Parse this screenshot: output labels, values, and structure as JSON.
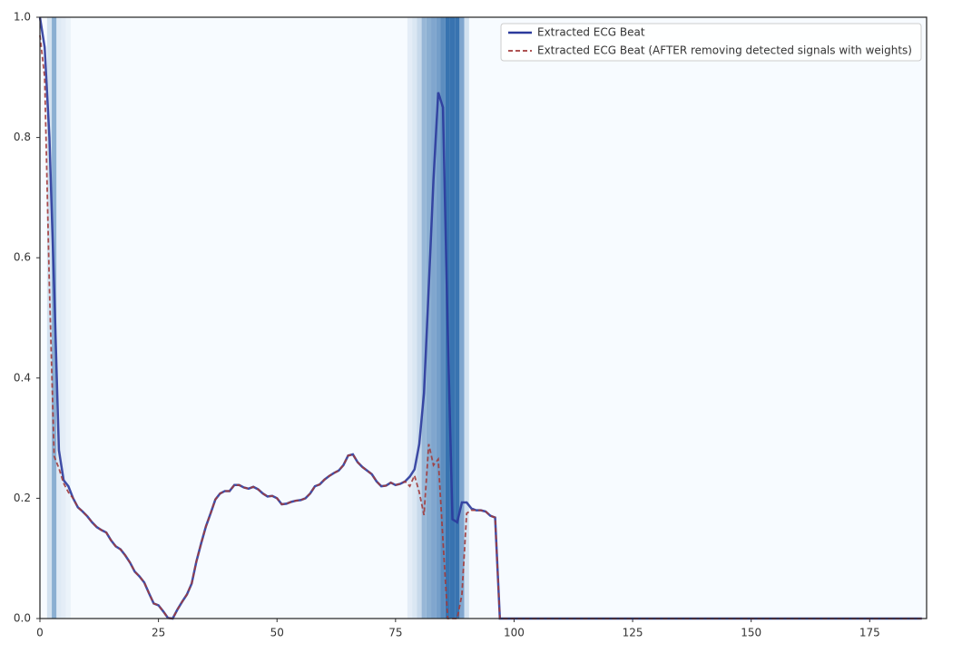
{
  "chart_data": {
    "type": "line",
    "x": [
      0,
      1,
      2,
      3,
      4,
      5,
      6,
      7,
      8,
      9,
      10,
      11,
      12,
      13,
      14,
      15,
      16,
      17,
      18,
      19,
      20,
      21,
      22,
      23,
      24,
      25,
      26,
      27,
      28,
      29,
      30,
      31,
      32,
      33,
      34,
      35,
      36,
      37,
      38,
      39,
      40,
      41,
      42,
      43,
      44,
      45,
      46,
      47,
      48,
      49,
      50,
      51,
      52,
      53,
      54,
      55,
      56,
      57,
      58,
      59,
      60,
      61,
      62,
      63,
      64,
      65,
      66,
      67,
      68,
      69,
      70,
      71,
      72,
      73,
      74,
      75,
      76,
      77,
      78,
      79,
      80,
      81,
      82,
      83,
      84,
      85,
      86,
      87,
      88,
      89,
      90,
      91,
      92,
      93,
      94,
      95,
      96,
      97,
      98,
      99,
      100,
      101,
      102,
      103,
      104,
      105,
      106,
      107,
      108,
      109,
      110,
      111,
      112,
      113,
      114,
      115,
      116,
      117,
      118,
      119,
      120,
      121,
      122,
      123,
      124,
      125,
      126,
      127,
      128,
      129,
      130,
      131,
      132,
      133,
      134,
      135,
      136,
      137,
      138,
      139,
      140,
      141,
      142,
      143,
      144,
      145,
      146,
      147,
      148,
      149,
      150,
      151,
      152,
      153,
      154,
      155,
      156,
      157,
      158,
      159,
      160,
      161,
      162,
      163,
      164,
      165,
      166,
      167,
      168,
      169,
      170,
      171,
      172,
      173,
      174,
      175,
      176,
      177,
      178,
      179,
      180,
      181,
      182,
      183,
      184,
      185,
      186
    ],
    "series": [
      {
        "name": "Extracted ECG Beat",
        "color": "#2b3a9c",
        "dash": false,
        "values": [
          1.0,
          0.95,
          0.8,
          0.55,
          0.28,
          0.23,
          0.22,
          0.2,
          0.185,
          0.178,
          0.17,
          0.16,
          0.152,
          0.147,
          0.143,
          0.13,
          0.12,
          0.115,
          0.105,
          0.093,
          0.078,
          0.07,
          0.06,
          0.042,
          0.025,
          0.022,
          0.012,
          0.001,
          0.0,
          0.015,
          0.028,
          0.04,
          0.058,
          0.095,
          0.125,
          0.153,
          0.175,
          0.198,
          0.208,
          0.212,
          0.212,
          0.222,
          0.222,
          0.218,
          0.216,
          0.219,
          0.215,
          0.208,
          0.203,
          0.204,
          0.2,
          0.19,
          0.191,
          0.194,
          0.196,
          0.197,
          0.2,
          0.208,
          0.22,
          0.223,
          0.231,
          0.237,
          0.242,
          0.246,
          0.255,
          0.271,
          0.273,
          0.26,
          0.252,
          0.246,
          0.24,
          0.228,
          0.22,
          0.221,
          0.226,
          0.222,
          0.224,
          0.228,
          0.236,
          0.248,
          0.29,
          0.375,
          0.55,
          0.73,
          0.875,
          0.85,
          0.48,
          0.165,
          0.16,
          0.193,
          0.193,
          0.183,
          0.18,
          0.18,
          0.178,
          0.171,
          0.168,
          0,
          0,
          0,
          0,
          0,
          0,
          0,
          0,
          0,
          0,
          0,
          0,
          0,
          0,
          0,
          0,
          0,
          0,
          0,
          0,
          0,
          0,
          0,
          0,
          0,
          0,
          0,
          0,
          0,
          0,
          0,
          0,
          0,
          0,
          0,
          0,
          0,
          0,
          0,
          0,
          0,
          0,
          0,
          0,
          0,
          0,
          0,
          0,
          0,
          0,
          0,
          0,
          0,
          0,
          0,
          0,
          0,
          0,
          0,
          0,
          0,
          0,
          0,
          0,
          0,
          0,
          0,
          0,
          0,
          0,
          0,
          0,
          0,
          0,
          0,
          0,
          0,
          0,
          0,
          0,
          0,
          0,
          0,
          0,
          0,
          0,
          0,
          0,
          0,
          0
        ]
      },
      {
        "name": "Extracted ECG Beat (AFTER removing detected signals with weights)",
        "color": "#a23b3b",
        "dash": true,
        "values": [
          0.97,
          0.9,
          0.55,
          0.27,
          0.25,
          0.225,
          0.21,
          0.2,
          0.185,
          0.178,
          0.17,
          0.16,
          0.152,
          0.147,
          0.143,
          0.13,
          0.12,
          0.115,
          0.105,
          0.093,
          0.078,
          0.07,
          0.06,
          0.042,
          0.025,
          0.022,
          0.012,
          0.001,
          0.0,
          0.015,
          0.028,
          0.04,
          0.058,
          0.095,
          0.125,
          0.153,
          0.175,
          0.198,
          0.208,
          0.212,
          0.212,
          0.222,
          0.222,
          0.218,
          0.216,
          0.219,
          0.215,
          0.208,
          0.203,
          0.204,
          0.2,
          0.19,
          0.191,
          0.194,
          0.196,
          0.197,
          0.2,
          0.208,
          0.22,
          0.223,
          0.231,
          0.237,
          0.242,
          0.246,
          0.255,
          0.271,
          0.273,
          0.26,
          0.252,
          0.246,
          0.24,
          0.228,
          0.22,
          0.221,
          0.226,
          0.222,
          0.224,
          0.228,
          0.22,
          0.238,
          0.21,
          0.172,
          0.29,
          0.255,
          0.265,
          0.13,
          0.0,
          0.0,
          0.0,
          0.04,
          0.175,
          0.18,
          0.18,
          0.18,
          0.178,
          0.171,
          0.168,
          0,
          0,
          0,
          0,
          0,
          0,
          0,
          0,
          0,
          0,
          0,
          0,
          0,
          0,
          0,
          0,
          0,
          0,
          0,
          0,
          0,
          0,
          0,
          0,
          0,
          0,
          0,
          0,
          0,
          0,
          0,
          0,
          0,
          0,
          0,
          0,
          0,
          0,
          0,
          0,
          0,
          0,
          0,
          0,
          0,
          0,
          0,
          0,
          0,
          0,
          0,
          0,
          0,
          0,
          0,
          0,
          0,
          0,
          0,
          0,
          0,
          0,
          0,
          0,
          0,
          0,
          0,
          0,
          0,
          0,
          0,
          0,
          0,
          0,
          0,
          0,
          0,
          0,
          0,
          0,
          0,
          0,
          0,
          0,
          0,
          0,
          0,
          0,
          0,
          0
        ]
      }
    ],
    "shading": {
      "colors": [
        "#f7fbff",
        "#08519c"
      ],
      "x": [
        2,
        3,
        4,
        5,
        6,
        78,
        79,
        80,
        81,
        82,
        83,
        84,
        85,
        86,
        87,
        88,
        89,
        90
      ],
      "values": [
        0.15,
        0.45,
        0.1,
        0.08,
        0.05,
        0.08,
        0.12,
        0.2,
        0.4,
        0.45,
        0.5,
        0.55,
        0.65,
        0.8,
        0.8,
        0.8,
        0.5,
        0.15
      ]
    },
    "xlim": [
      0,
      187
    ],
    "xticks": [
      0,
      25,
      50,
      75,
      100,
      125,
      150,
      175
    ],
    "ylim": [
      0,
      1
    ],
    "yticks": [
      {
        "value": 0,
        "label": "0.0"
      },
      0.2,
      0.4,
      0.6,
      0.8,
      {
        "value": 1,
        "label": "1.0"
      }
    ],
    "legend": "upper right"
  }
}
